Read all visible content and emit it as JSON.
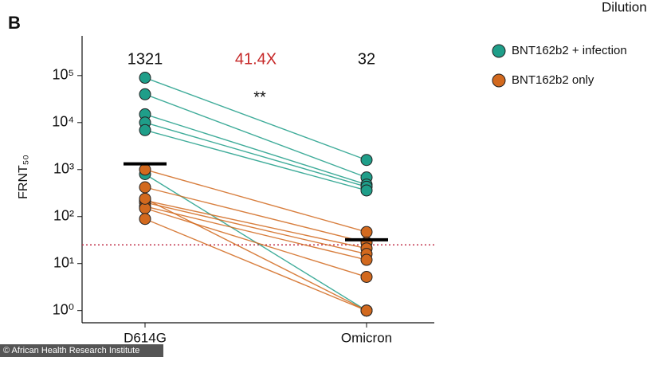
{
  "chart_data": {
    "type": "paired",
    "panel_label": "B",
    "header_fragment": "Dilution",
    "credit": "© African Health Research Institute",
    "y_label": "FRNT₅₀",
    "categories": [
      "D614G",
      "Omicron"
    ],
    "log_scale": true,
    "ylim": [
      0.55,
      700000
    ],
    "yticks": [
      {
        "value": 1,
        "label": "10⁰"
      },
      {
        "value": 10,
        "label": "10¹"
      },
      {
        "value": 100,
        "label": "10²"
      },
      {
        "value": 1000,
        "label": "10³"
      },
      {
        "value": 10000,
        "label": "10⁴"
      },
      {
        "value": 100000,
        "label": "10⁵"
      }
    ],
    "means": [
      1321,
      32
    ],
    "fold_change": "41.4X",
    "significance": "**",
    "threshold": 25,
    "series": [
      {
        "name": "BNT162b2 + infection",
        "color": "#1f9e89",
        "values": [
          [
            90000,
            1600
          ],
          [
            40000,
            680
          ],
          [
            15000,
            480
          ],
          [
            10000,
            430
          ],
          [
            6900,
            360
          ],
          [
            800,
            1
          ]
        ]
      },
      {
        "name": "BNT162b2 only",
        "color": "#d2691e",
        "values": [
          [
            1000,
            47
          ],
          [
            420,
            28
          ],
          [
            220,
            21
          ],
          [
            200,
            16
          ],
          [
            165,
            12
          ],
          [
            150,
            5.2
          ],
          [
            89,
            1
          ],
          [
            240,
            1
          ]
        ]
      }
    ]
  }
}
